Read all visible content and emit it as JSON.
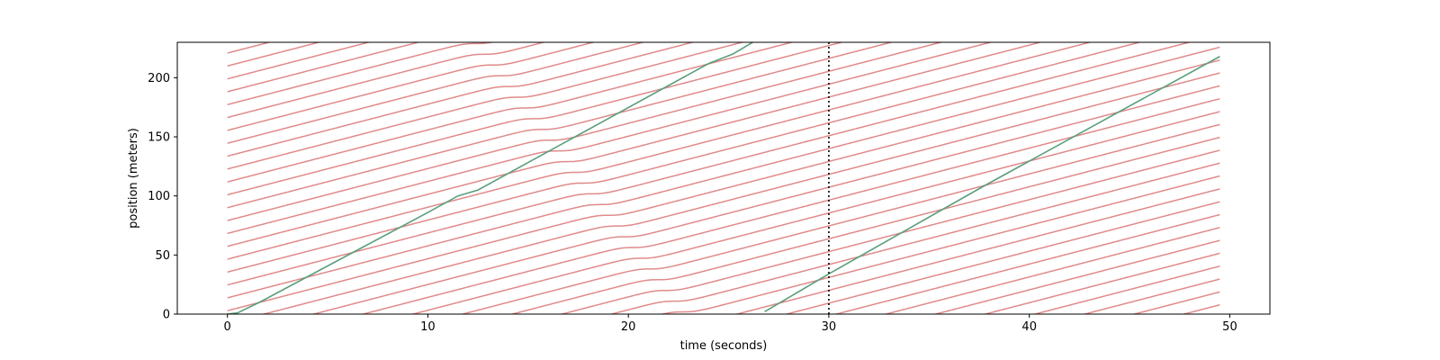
{
  "chart_data": {
    "type": "line",
    "title": "",
    "xlabel": "time (seconds)",
    "ylabel": "position (meters)",
    "xlim": [
      -2.5,
      52
    ],
    "ylim": [
      0,
      230
    ],
    "xticks": [
      0,
      10,
      20,
      30,
      40,
      50
    ],
    "yticks": [
      0,
      50,
      100,
      150,
      200
    ],
    "grid": false,
    "legend": "none",
    "colors": {
      "background_vehicles": "#e08a8a",
      "highlighted_vehicles": "#5a9f7b",
      "marker_line": "#000000"
    },
    "vehicle_model": {
      "speed_m_per_s": 4.4,
      "headway_m": 10.9,
      "t_start": 0,
      "t_end": 49.5,
      "wave_entry_time_at_y0": 22.8,
      "wave_speed_m_per_s": 22.0,
      "wave_delay_s": 1.3,
      "trajectory_count": 43
    },
    "highlighted_series": [
      {
        "x": [
          0.0,
          0.5,
          1.6,
          10.0,
          11.5,
          12.5,
          24.0,
          25.2,
          26.2
        ],
        "y": [
          0,
          1,
          10,
          86,
          100,
          105,
          212,
          220,
          230
        ]
      },
      {
        "x": [
          26.8,
          30.0,
          37.8,
          49.5
        ],
        "y": [
          2,
          34,
          109,
          218
        ]
      }
    ],
    "vertical_marker": {
      "x": 30,
      "style": "dotted"
    }
  }
}
